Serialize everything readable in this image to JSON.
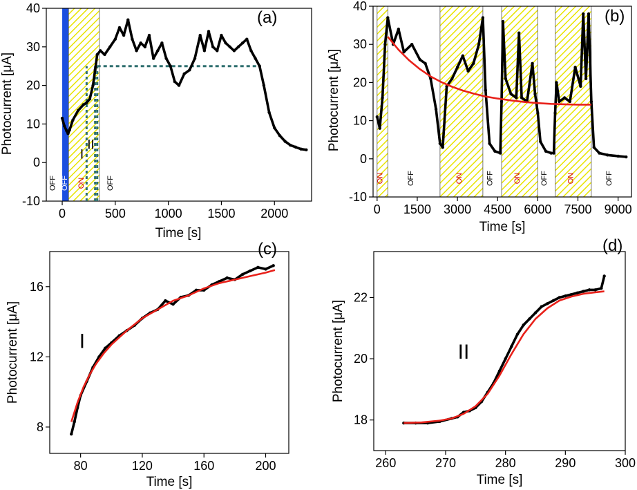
{
  "chart_data": [
    {
      "panel": "(a)",
      "type": "line",
      "xlabel": "Time [s]",
      "ylabel_main": "Photocurrent [",
      "ylabel_mu": "μ",
      "ylabel_unit": "A]",
      "xlim": [
        -150,
        2350
      ],
      "ylim": [
        -10,
        40
      ],
      "xticks": [
        0,
        500,
        1000,
        1500,
        2000
      ],
      "yticks": [
        -10,
        0,
        10,
        20,
        30,
        40
      ],
      "series": [
        {
          "name": "photocurrent",
          "color": "#000000",
          "x": [
            0,
            20,
            40,
            55,
            70,
            100,
            150,
            200,
            230,
            260,
            290,
            310,
            330,
            360,
            400,
            450,
            500,
            540,
            580,
            620,
            660,
            700,
            740,
            780,
            820,
            860,
            900,
            940,
            980,
            1020,
            1060,
            1100,
            1150,
            1200,
            1250,
            1300,
            1340,
            1380,
            1420,
            1460,
            1500,
            1540,
            1580,
            1620,
            1660,
            1700,
            1740,
            1780,
            1820,
            1860,
            1900,
            1950,
            2000,
            2050,
            2100,
            2150,
            2200,
            2250,
            2300
          ],
          "y": [
            11.5,
            9.5,
            8.3,
            7.5,
            8.5,
            11,
            13.5,
            15,
            15.5,
            16.5,
            20,
            24,
            28,
            29,
            28,
            30,
            32,
            35,
            33,
            37,
            32,
            29,
            31,
            30,
            33,
            27,
            29,
            31,
            27,
            25,
            21,
            20,
            23,
            24,
            27,
            33,
            29,
            34,
            30,
            29,
            33,
            31,
            30,
            29,
            30,
            31,
            32,
            29,
            27,
            25,
            20,
            13,
            9,
            7,
            5.5,
            4.5,
            4,
            3.5,
            3.3
          ]
        }
      ],
      "shaded_regions": [
        {
          "x0": 0,
          "x1": 60,
          "style": "blue"
        },
        {
          "x0": 60,
          "x1": 350,
          "style": "hatch"
        }
      ],
      "vertical_dashed_lines": [
        230,
        310,
        330
      ],
      "horizontal_dashed_line": {
        "x0": 330,
        "x1": 1850,
        "y": 25
      },
      "state_labels": [
        {
          "text": "OFF",
          "x": -70,
          "color": "#000000"
        },
        {
          "text": "OFF",
          "x": 45,
          "color": "#ffffff"
        },
        {
          "text": "ON",
          "x": 200,
          "color": "#d40000"
        },
        {
          "text": "OFF",
          "x": 475,
          "color": "#000000"
        }
      ],
      "annotations": [
        {
          "text": "I",
          "x": 185,
          "y": 1
        },
        {
          "text": "II",
          "x": 270,
          "y": 3.5
        }
      ]
    },
    {
      "panel": "(b)",
      "type": "line",
      "xlabel": "Time [s]",
      "ylabel_main": "Photocurrent [",
      "ylabel_mu": "μ",
      "ylabel_unit": "A]",
      "xlim": [
        -150,
        9500
      ],
      "ylim": [
        -10,
        40
      ],
      "xticks": [
        0,
        1500,
        3000,
        4500,
        6000,
        7500,
        9000
      ],
      "yticks": [
        -10,
        0,
        10,
        20,
        30,
        40
      ],
      "series": [
        {
          "name": "photocurrent",
          "color": "#000000",
          "x": [
            0,
            100,
            200,
            300,
            400,
            600,
            800,
            1000,
            1300,
            1600,
            1800,
            2000,
            2200,
            2350,
            2450,
            2600,
            2800,
            3000,
            3200,
            3400,
            3600,
            3800,
            3950,
            4050,
            4200,
            4400,
            4600,
            4650,
            4700,
            4800,
            5000,
            5200,
            5300,
            5400,
            5600,
            5800,
            5900,
            6000,
            6100,
            6300,
            6500,
            6600,
            6650,
            6700,
            6800,
            7000,
            7200,
            7400,
            7600,
            7700,
            7800,
            7900,
            8000,
            8100,
            8300,
            8600,
            9000,
            9300
          ],
          "y": [
            11,
            8,
            16,
            30,
            37,
            30,
            34,
            28,
            30,
            26,
            25,
            21,
            13,
            4,
            3,
            19,
            21,
            24,
            27,
            23,
            25,
            30,
            37,
            18,
            4,
            2,
            1.5,
            15,
            36,
            21,
            17,
            16,
            33,
            16,
            15,
            25,
            17,
            12,
            4.5,
            2,
            1.5,
            1.5,
            12,
            20,
            15,
            16,
            15,
            24,
            19,
            38,
            21,
            38,
            15,
            3,
            1.5,
            1,
            0.7,
            0.5
          ]
        },
        {
          "name": "fit",
          "color": "#e8211a",
          "x": [
            400,
            800,
            1200,
            1600,
            2000,
            2400,
            2800,
            3200,
            3600,
            4000,
            4500,
            5000,
            5500,
            6000,
            6500,
            7000,
            7500,
            8000
          ],
          "y": [
            32,
            28.6,
            25.8,
            23.5,
            21.6,
            20.1,
            18.9,
            17.9,
            17.1,
            16.4,
            15.8,
            15.3,
            14.9,
            14.6,
            14.4,
            14.3,
            14.2,
            14.2
          ]
        }
      ],
      "shaded_regions": [
        {
          "x0": 0,
          "x1": 400,
          "style": "hatch"
        },
        {
          "x0": 2350,
          "x1": 3950,
          "style": "hatch"
        },
        {
          "x0": 4650,
          "x1": 6000,
          "style": "hatch"
        },
        {
          "x0": 6650,
          "x1": 8000,
          "style": "hatch"
        }
      ],
      "state_labels": [
        {
          "text": "ON",
          "x": 200,
          "color": "#d40000"
        },
        {
          "text": "OFF",
          "x": 1350,
          "color": "#000000"
        },
        {
          "text": "ON",
          "x": 3150,
          "color": "#d40000"
        },
        {
          "text": "OFF",
          "x": 4300,
          "color": "#000000"
        },
        {
          "text": "ON",
          "x": 5320,
          "color": "#d40000"
        },
        {
          "text": "OFF",
          "x": 6320,
          "color": "#000000"
        },
        {
          "text": "ON",
          "x": 7320,
          "color": "#d40000"
        },
        {
          "text": "OFF",
          "x": 8750,
          "color": "#000000"
        }
      ]
    },
    {
      "panel": "(c)",
      "type": "line",
      "xlabel": "Time [s]",
      "ylabel_main": "Photocurrent [",
      "ylabel_mu": "μ",
      "ylabel_unit": "A]",
      "xlim": [
        60,
        215
      ],
      "ylim": [
        6.5,
        18
      ],
      "xticks": [
        80,
        120,
        160,
        200
      ],
      "yticks": [
        8,
        12,
        16
      ],
      "series": [
        {
          "name": "data",
          "color": "#000000",
          "x": [
            74,
            76,
            78,
            80,
            84,
            88,
            92,
            96,
            100,
            105,
            110,
            115,
            120,
            125,
            130,
            135,
            140,
            145,
            150,
            155,
            160,
            165,
            170,
            175,
            180,
            185,
            190,
            195,
            200,
            205
          ],
          "y": [
            7.6,
            8.3,
            9.1,
            9.8,
            10.6,
            11.4,
            12.0,
            12.5,
            12.8,
            13.2,
            13.5,
            13.8,
            14.2,
            14.5,
            14.7,
            15.2,
            15.0,
            15.4,
            15.5,
            15.8,
            15.8,
            16.1,
            16.3,
            16.5,
            16.4,
            16.7,
            16.9,
            17.1,
            17.0,
            17.2
          ]
        },
        {
          "name": "fit",
          "color": "#e8211a",
          "x": [
            74,
            78,
            82,
            86,
            90,
            95,
            100,
            110,
            120,
            130,
            140,
            150,
            160,
            170,
            180,
            190,
            200,
            206
          ],
          "y": [
            8.3,
            9.4,
            10.3,
            11.0,
            11.6,
            12.2,
            12.7,
            13.5,
            14.2,
            14.7,
            15.2,
            15.5,
            15.9,
            16.2,
            16.4,
            16.6,
            16.8,
            16.95
          ]
        }
      ],
      "annotations": [
        {
          "text": "I",
          "x": 81,
          "y": 12.5
        }
      ]
    },
    {
      "panel": "(d)",
      "type": "line",
      "xlabel": "Time [s]",
      "ylabel_main": "Photocurrent [",
      "ylabel_mu": "μ",
      "ylabel_unit": "A]",
      "xlim": [
        258,
        300
      ],
      "ylim": [
        17,
        23.5
      ],
      "xticks": [
        260,
        270,
        280,
        290,
        300
      ],
      "yticks": [
        18,
        20,
        22
      ],
      "series": [
        {
          "name": "data",
          "color": "#000000",
          "x": [
            263,
            265,
            267,
            269,
            271,
            272,
            273,
            274,
            275,
            276,
            277,
            278,
            279,
            280,
            281,
            282,
            283,
            284,
            285,
            286,
            287,
            288,
            289,
            290,
            291,
            292,
            293,
            294,
            295,
            296,
            296.5
          ],
          "y": [
            17.9,
            17.9,
            17.9,
            17.95,
            18.05,
            18.1,
            18.25,
            18.3,
            18.4,
            18.6,
            18.9,
            19.2,
            19.6,
            20.0,
            20.4,
            20.8,
            21.1,
            21.3,
            21.5,
            21.7,
            21.8,
            21.9,
            22.0,
            22.05,
            22.1,
            22.15,
            22.2,
            22.25,
            22.25,
            22.3,
            22.7
          ]
        },
        {
          "name": "fit",
          "color": "#e8211a",
          "x": [
            263,
            266,
            269,
            271,
            273,
            275,
            277,
            279,
            281,
            283,
            285,
            287,
            289,
            291,
            293,
            295,
            296.5
          ],
          "y": [
            17.9,
            17.92,
            17.98,
            18.05,
            18.2,
            18.45,
            18.85,
            19.45,
            20.15,
            20.8,
            21.3,
            21.65,
            21.9,
            22.03,
            22.12,
            22.17,
            22.2
          ]
        }
      ],
      "annotations": [
        {
          "text": "II",
          "x": 273,
          "y": 20
        }
      ]
    }
  ]
}
